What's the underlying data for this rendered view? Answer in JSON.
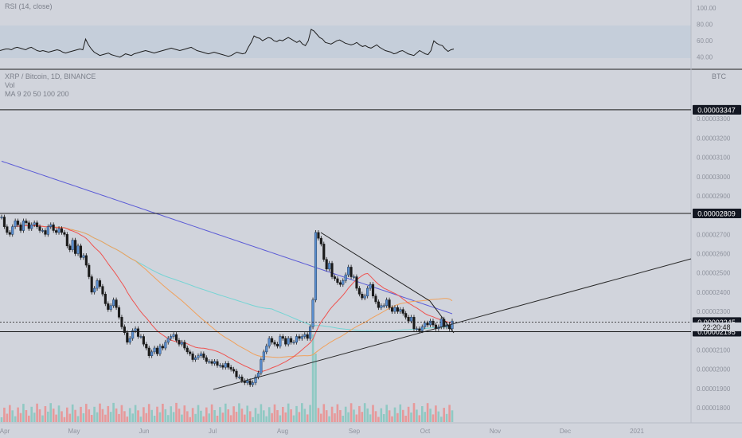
{
  "chart_data": {
    "type": "candlestick",
    "rsi_panel": {
      "indicator_label": "RSI (14, close)",
      "ticks": [
        "100.00",
        "80.00",
        "60.00",
        "40.00"
      ],
      "tick_values": [
        100,
        80,
        60,
        40
      ],
      "ylim": [
        28,
        108
      ],
      "band": [
        30,
        70
      ],
      "values": [
        48,
        49,
        50,
        50,
        49,
        51,
        52,
        51,
        50,
        49,
        51,
        52,
        50,
        48,
        47,
        48,
        47,
        46,
        47,
        48,
        49,
        48,
        46,
        45,
        46,
        47,
        48,
        49,
        50,
        49,
        62,
        55,
        50,
        46,
        44,
        42,
        43,
        44,
        45,
        43,
        42,
        41,
        40,
        42,
        44,
        43,
        42,
        44,
        45,
        46,
        47,
        48,
        47,
        46,
        45,
        46,
        47,
        48,
        49,
        50,
        51,
        50,
        49,
        48,
        49,
        50,
        51,
        52,
        50,
        48,
        47,
        46,
        45,
        44,
        45,
        46,
        45,
        44,
        43,
        42,
        41,
        42,
        44,
        46,
        45,
        44,
        45,
        52,
        58,
        66,
        64,
        63,
        60,
        62,
        64,
        63,
        60,
        59,
        61,
        60,
        62,
        64,
        62,
        60,
        58,
        60,
        56,
        54,
        60,
        74,
        72,
        68,
        64,
        62,
        58,
        57,
        56,
        58,
        60,
        61,
        59,
        57,
        56,
        55,
        56,
        58,
        55,
        53,
        54,
        52,
        51,
        53,
        55,
        52,
        50,
        48,
        47,
        46,
        44,
        45,
        47,
        48,
        46,
        44,
        43,
        42,
        45,
        48,
        46,
        44,
        43,
        48,
        60,
        57,
        55,
        54,
        50,
        47,
        49,
        50
      ]
    },
    "price_panel": {
      "symbol_line": "XRP / Bitcoin, 1D, BINANCE",
      "vol_label": "Vol",
      "ma_label": "MA 9 20 50 100 200",
      "currency": "BTC",
      "y_ticks": [
        "0.00003300",
        "0.00003200",
        "0.00003100",
        "0.00003000",
        "0.00002900",
        "0.00002800",
        "0.00002700",
        "0.00002600",
        "0.00002500",
        "0.00002400",
        "0.00002300",
        "0.00002200",
        "0.00002100",
        "0.00002000",
        "0.00001900",
        "0.00001800"
      ],
      "y_tick_values": [
        3.3e-05,
        3.2e-05,
        3.1e-05,
        3e-05,
        2.9e-05,
        2.8e-05,
        2.7e-05,
        2.6e-05,
        2.5e-05,
        2.4e-05,
        2.3e-05,
        2.2e-05,
        2.1e-05,
        2e-05,
        1.9e-05,
        1.8e-05
      ],
      "ylim": [
        1.8e-05,
        3.4e-05
      ],
      "close": [
        2.79,
        2.74,
        2.71,
        2.7,
        2.74,
        2.77,
        2.75,
        2.72,
        2.77,
        2.76,
        2.73,
        2.75,
        2.76,
        2.74,
        2.72,
        2.72,
        2.7,
        2.74,
        2.75,
        2.72,
        2.71,
        2.73,
        2.71,
        2.7,
        2.64,
        2.62,
        2.67,
        2.6,
        2.64,
        2.58,
        2.59,
        2.54,
        2.48,
        2.4,
        2.42,
        2.46,
        2.43,
        2.39,
        2.34,
        2.31,
        2.33,
        2.36,
        2.32,
        2.27,
        2.22,
        2.19,
        2.14,
        2.16,
        2.2,
        2.21,
        2.17,
        2.17,
        2.13,
        2.11,
        2.07,
        2.09,
        2.11,
        2.08,
        2.12,
        2.11,
        2.14,
        2.16,
        2.17,
        2.18,
        2.15,
        2.13,
        2.14,
        2.11,
        2.09,
        2.08,
        2.05,
        2.06,
        2.07,
        2.08,
        2.06,
        2.04,
        2.04,
        2.03,
        2.04,
        2.02,
        2.02,
        2.01,
        2.03,
        2.01,
        2.0,
        1.99,
        1.96,
        1.96,
        1.94,
        1.93,
        1.94,
        1.92,
        1.93,
        1.96,
        1.98,
        2.05,
        2.09,
        2.12,
        2.16,
        2.14,
        2.13,
        2.12,
        2.17,
        2.16,
        2.13,
        2.16,
        2.14,
        2.14,
        2.17,
        2.16,
        2.17,
        2.18,
        2.16,
        2.22,
        2.36,
        2.71,
        2.68,
        2.65,
        2.57,
        2.52,
        2.55,
        2.48,
        2.47,
        2.45,
        2.44,
        2.46,
        2.49,
        2.53,
        2.48,
        2.48,
        2.42,
        2.39,
        2.37,
        2.38,
        2.42,
        2.44,
        2.38,
        2.35,
        2.32,
        2.33,
        2.33,
        2.36,
        2.32,
        2.3,
        2.32,
        2.3,
        2.31,
        2.29,
        2.27,
        2.25,
        2.27,
        2.21,
        2.21,
        2.2,
        2.22,
        2.24,
        2.23,
        2.25,
        2.23,
        2.21,
        2.22,
        2.26,
        2.22,
        2.23,
        2.21,
        2.25
      ]
    },
    "hlines": [
      "0.00003347",
      "0.00002809",
      "0.00002245",
      "0.00002195"
    ],
    "hline_values": [
      3.347e-05,
      2.809e-05,
      2.245e-05,
      2.195e-05
    ],
    "countdown": "22:20:48",
    "x_ticks": [
      "Apr",
      "May",
      "Jun",
      "Jul",
      "Aug",
      "Sep",
      "Oct",
      "Nov",
      "Dec",
      "2021"
    ],
    "colors": {
      "up": "#26a69a",
      "down": "#ef5350",
      "ma200": "#5b5bd6",
      "ma100": "#74d4d4",
      "ma50": "#f0a15c",
      "ma20": "#ef5350",
      "rsi": "#1e1e1e"
    }
  }
}
